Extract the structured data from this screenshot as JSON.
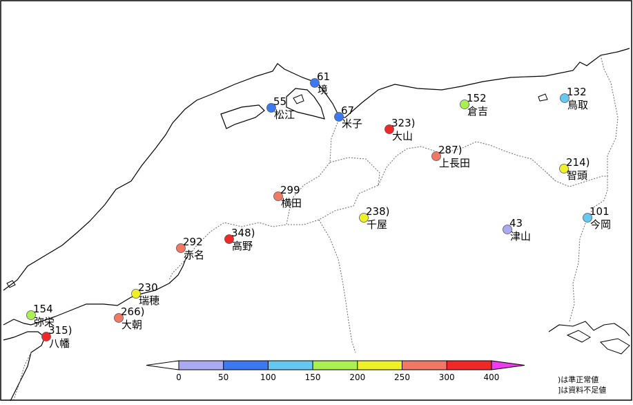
{
  "stations": [
    {
      "name": "境",
      "value": "61",
      "amount": 61
    },
    {
      "name": "松江",
      "value": "55",
      "amount": 55
    },
    {
      "name": "米子",
      "value": "67",
      "amount": 67
    },
    {
      "name": "大山",
      "value": "323)",
      "amount": 323
    },
    {
      "name": "倉吉",
      "value": "152",
      "amount": 152
    },
    {
      "name": "鳥取",
      "value": "132",
      "amount": 132
    },
    {
      "name": "上長田",
      "value": "287)",
      "amount": 287
    },
    {
      "name": "智頭",
      "value": "214)",
      "amount": 214
    },
    {
      "name": "横田",
      "value": "299",
      "amount": 299
    },
    {
      "name": "千屋",
      "value": "238)",
      "amount": 238
    },
    {
      "name": "今岡",
      "value": "101",
      "amount": 101
    },
    {
      "name": "津山",
      "value": "43",
      "amount": 43
    },
    {
      "name": "高野",
      "value": "348)",
      "amount": 348
    },
    {
      "name": "赤名",
      "value": "292",
      "amount": 292
    },
    {
      "name": "瑞穂",
      "value": "230",
      "amount": 230
    },
    {
      "name": "大朝",
      "value": "266)",
      "amount": 266
    },
    {
      "name": "弥栄",
      "value": "154",
      "amount": 154
    },
    {
      "name": "八幡",
      "value": "315)",
      "amount": 315
    }
  ],
  "colorbar": {
    "ticks": [
      "0",
      "50",
      "100",
      "150",
      "200",
      "250",
      "300",
      "400"
    ],
    "bins": [
      {
        "min": 0,
        "max": 50,
        "color": "#aaaaf0"
      },
      {
        "min": 50,
        "max": 100,
        "color": "#3c78f0"
      },
      {
        "min": 100,
        "max": 150,
        "color": "#64c8f0"
      },
      {
        "min": 150,
        "max": 200,
        "color": "#aaf050"
      },
      {
        "min": 200,
        "max": 250,
        "color": "#f0f028"
      },
      {
        "min": 250,
        "max": 300,
        "color": "#f07864"
      },
      {
        "min": 300,
        "max": 400,
        "color": "#f02828"
      }
    ],
    "under_color": "#ffffff",
    "over_color": "#f03cf0"
  },
  "legend_notes": [
    ")は準正常値",
    "]は資料不足値"
  ]
}
